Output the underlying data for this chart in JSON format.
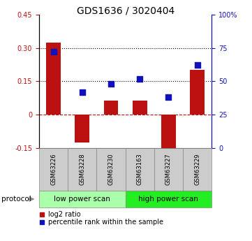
{
  "title": "GDS1636 / 3020404",
  "samples": [
    "GSM63226",
    "GSM63228",
    "GSM63230",
    "GSM63163",
    "GSM63227",
    "GSM63229"
  ],
  "log2_ratio": [
    0.325,
    -0.125,
    0.065,
    0.065,
    -0.16,
    0.2
  ],
  "percentile_rank": [
    72,
    42,
    48,
    52,
    38,
    62
  ],
  "ylim_left": [
    -0.15,
    0.45
  ],
  "ylim_right": [
    0,
    100
  ],
  "yticks_left": [
    -0.15,
    0.0,
    0.15,
    0.3,
    0.45
  ],
  "yticks_left_labels": [
    "-0.15",
    "0",
    "0.15",
    "0.30",
    "0.45"
  ],
  "yticks_right": [
    0,
    25,
    50,
    75,
    100
  ],
  "yticks_right_labels": [
    "0",
    "25",
    "50",
    "75",
    "100%"
  ],
  "hlines": [
    0.15,
    0.3
  ],
  "bar_color": "#bb1111",
  "dot_color": "#1111bb",
  "bar_width": 0.5,
  "dot_size": 40,
  "protocol_groups": [
    {
      "label": "low power scan",
      "n": 3,
      "color": "#aaffaa"
    },
    {
      "label": "high power scan",
      "n": 3,
      "color": "#22ee22"
    }
  ],
  "legend_bar_label": "log2 ratio",
  "legend_dot_label": "percentile rank within the sample",
  "title_fontsize": 10,
  "tick_fontsize": 7,
  "sample_fontsize": 6,
  "protocol_fontsize": 7.5,
  "legend_fontsize": 7
}
